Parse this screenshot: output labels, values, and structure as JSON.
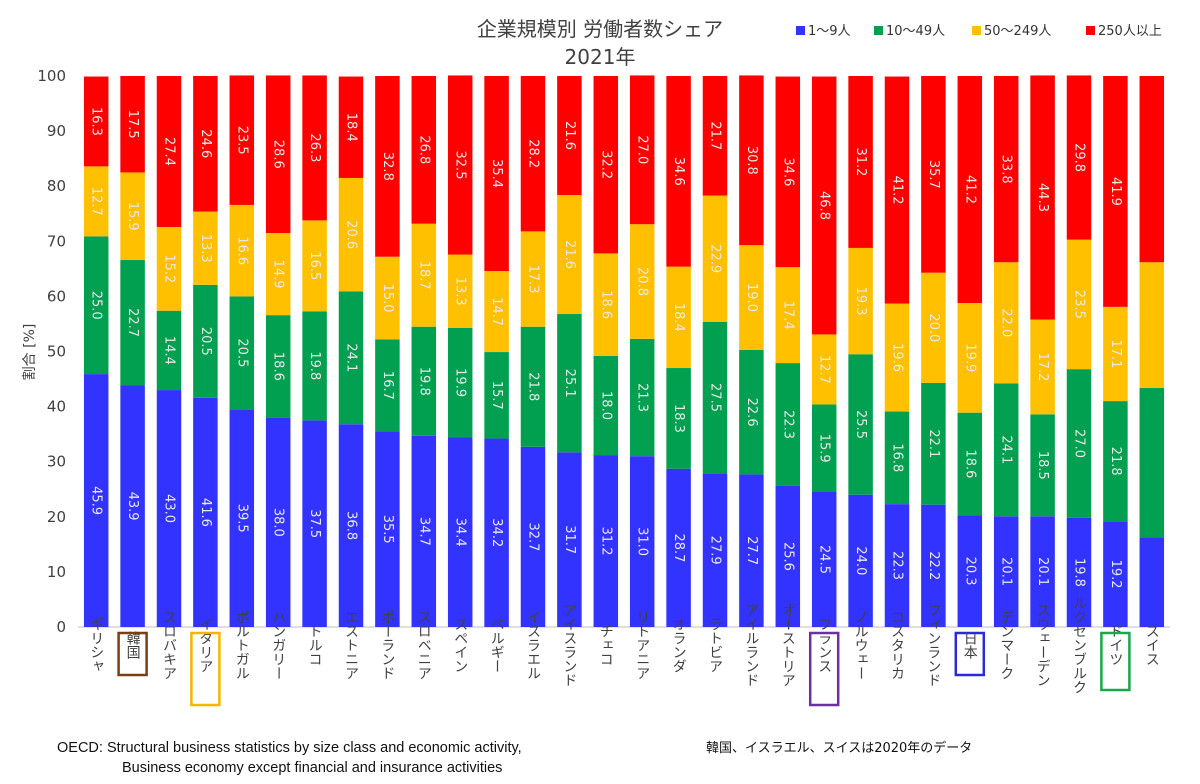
{
  "chart_data": {
    "type": "bar",
    "stacked": true,
    "title": [
      "企業規模別 労働者数シェア",
      "2021年"
    ],
    "ylabel": "割合 [%]",
    "xlabel": "",
    "ylim": [
      0,
      100
    ],
    "yticks": [
      0,
      10,
      20,
      30,
      40,
      50,
      60,
      70,
      80,
      90,
      100
    ],
    "grid": false,
    "legend_position": "top-right",
    "categories": [
      "ギリシャ",
      "韓国",
      "スロバキア",
      "イタリア",
      "ポルトガル",
      "ハンガリー",
      "トルコ",
      "エストニア",
      "ポーランド",
      "スロベニア",
      "スペイン",
      "ベルギー",
      "イスラエル",
      "アイスランド",
      "チェコ",
      "リトアニア",
      "オランダ",
      "ラトビア",
      "アイルランド",
      "オーストリア",
      "フランス",
      "ノルウェー",
      "コスタリカ",
      "フィンランド",
      "日本",
      "デンマーク",
      "スウェーデン",
      "ルクセンブルク",
      "ドイツ",
      "スイス"
    ],
    "highlighted": [
      {
        "category": "韓国",
        "color": "#7a3e10"
      },
      {
        "category": "イタリア",
        "color": "#f7b500"
      },
      {
        "category": "フランス",
        "color": "#6a2fa0"
      },
      {
        "category": "日本",
        "color": "#2a2ad8"
      },
      {
        "category": "ドイツ",
        "color": "#1aa64a"
      }
    ],
    "series": [
      {
        "name": "1〜9人",
        "color": "#3333ff",
        "values": [
          45.9,
          43.9,
          43.0,
          41.6,
          39.5,
          38.0,
          37.5,
          36.8,
          35.5,
          34.7,
          34.4,
          34.2,
          32.7,
          31.7,
          31.2,
          31.0,
          28.7,
          27.9,
          27.7,
          25.6,
          24.5,
          24.0,
          22.3,
          22.2,
          20.3,
          20.1,
          20.1,
          19.8,
          19.2,
          16.3
        ]
      },
      {
        "name": "10〜49人",
        "color": "#00a050",
        "values": [
          25.0,
          22.7,
          14.4,
          20.5,
          20.5,
          18.6,
          19.8,
          24.1,
          16.7,
          19.8,
          19.9,
          15.7,
          21.8,
          25.1,
          18.0,
          21.3,
          18.3,
          27.5,
          22.6,
          22.3,
          15.9,
          25.5,
          16.8,
          22.1,
          18.6,
          24.1,
          18.5,
          27.0,
          21.8,
          27.1
        ]
      },
      {
        "name": "50〜249人",
        "color": "#ffc000",
        "values": [
          12.7,
          15.9,
          15.2,
          13.3,
          16.6,
          14.9,
          16.5,
          20.6,
          15.0,
          18.7,
          13.3,
          14.7,
          17.3,
          21.6,
          18.6,
          20.8,
          18.4,
          22.9,
          19.0,
          17.4,
          12.7,
          19.3,
          19.6,
          20.0,
          19.9,
          22.0,
          17.2,
          23.5,
          17.1,
          22.8
        ]
      },
      {
        "name": "250人以上",
        "color": "#ff0000",
        "values": [
          16.3,
          17.5,
          27.4,
          24.6,
          23.5,
          28.6,
          26.3,
          18.4,
          32.8,
          26.8,
          32.5,
          35.4,
          28.2,
          21.6,
          32.2,
          27.0,
          34.6,
          21.7,
          30.8,
          34.6,
          46.8,
          31.2,
          41.2,
          35.7,
          41.2,
          33.8,
          44.3,
          29.8,
          41.9,
          33.8
        ]
      }
    ],
    "value_labels": [
      [
        "45.9",
        "43.9",
        "43.0",
        "41.6",
        "39.5",
        "38.0",
        "37.5",
        "36.8",
        "35.5",
        "34.7",
        "34.4",
        "34.2",
        "32.7",
        "31.7",
        "31.2",
        "31.0",
        "28.7",
        "27.9",
        "27.7",
        "25.6",
        "24.5",
        "24.0",
        "22.3",
        "22.2",
        "20.3",
        "20.1",
        "20.1",
        "19.8",
        "19.2",
        "16.3"
      ],
      [
        "25.0",
        "22.7",
        "14.4",
        "20.5",
        "20.5",
        "18.6",
        "19.8",
        "24.1",
        "16.7",
        "19.8",
        "19.9",
        "15.7",
        "21.8",
        "25.1",
        "18.0",
        "21.3",
        "18.3",
        "27.5",
        "22.6",
        "22.3",
        "15.9",
        "25.5",
        "16.8",
        "22.1",
        "18.6",
        "24.1",
        "18.5",
        "27.0",
        "21.8",
        "27.1"
      ],
      [
        "12.7",
        "15.9",
        "15.2",
        "13.3",
        "16.6",
        "14.9",
        "16.5",
        "20.6",
        "15.0",
        "18.7",
        "13.3",
        "14.7",
        "17.3",
        "21.6",
        "18.6",
        "20.8",
        "18.4",
        "22.9",
        "19.0",
        "17.4",
        "12.7",
        "19.3",
        "19.6",
        "20.0",
        "19.9",
        "22.0",
        "17.2",
        "23.5",
        "17.1",
        "22.8"
      ],
      [
        "16.3",
        "17.5",
        "27.4",
        "24.6",
        "23.5",
        "28.6",
        "26.3",
        "18.4",
        "32.8",
        "26.8",
        "32.5",
        "35.4",
        "28.2",
        "21.6",
        "32.2",
        "27.0",
        "34.6",
        "21.7",
        "30.8",
        "34.6",
        "46.8",
        "31.2",
        "41.2",
        "35.7",
        "41.2",
        "33.8",
        "44.3",
        "29.8",
        "41.9",
        "33.8"
      ]
    ],
    "value_labels_hidden_for_last_bar": true
  },
  "footnotes": {
    "source_line1": "OECD: Structural business statistics by size class and economic activity,",
    "source_line2": "Business economy except financial and insurance activities",
    "note": "韓国、イスラエル、スイスは2020年のデータ"
  }
}
